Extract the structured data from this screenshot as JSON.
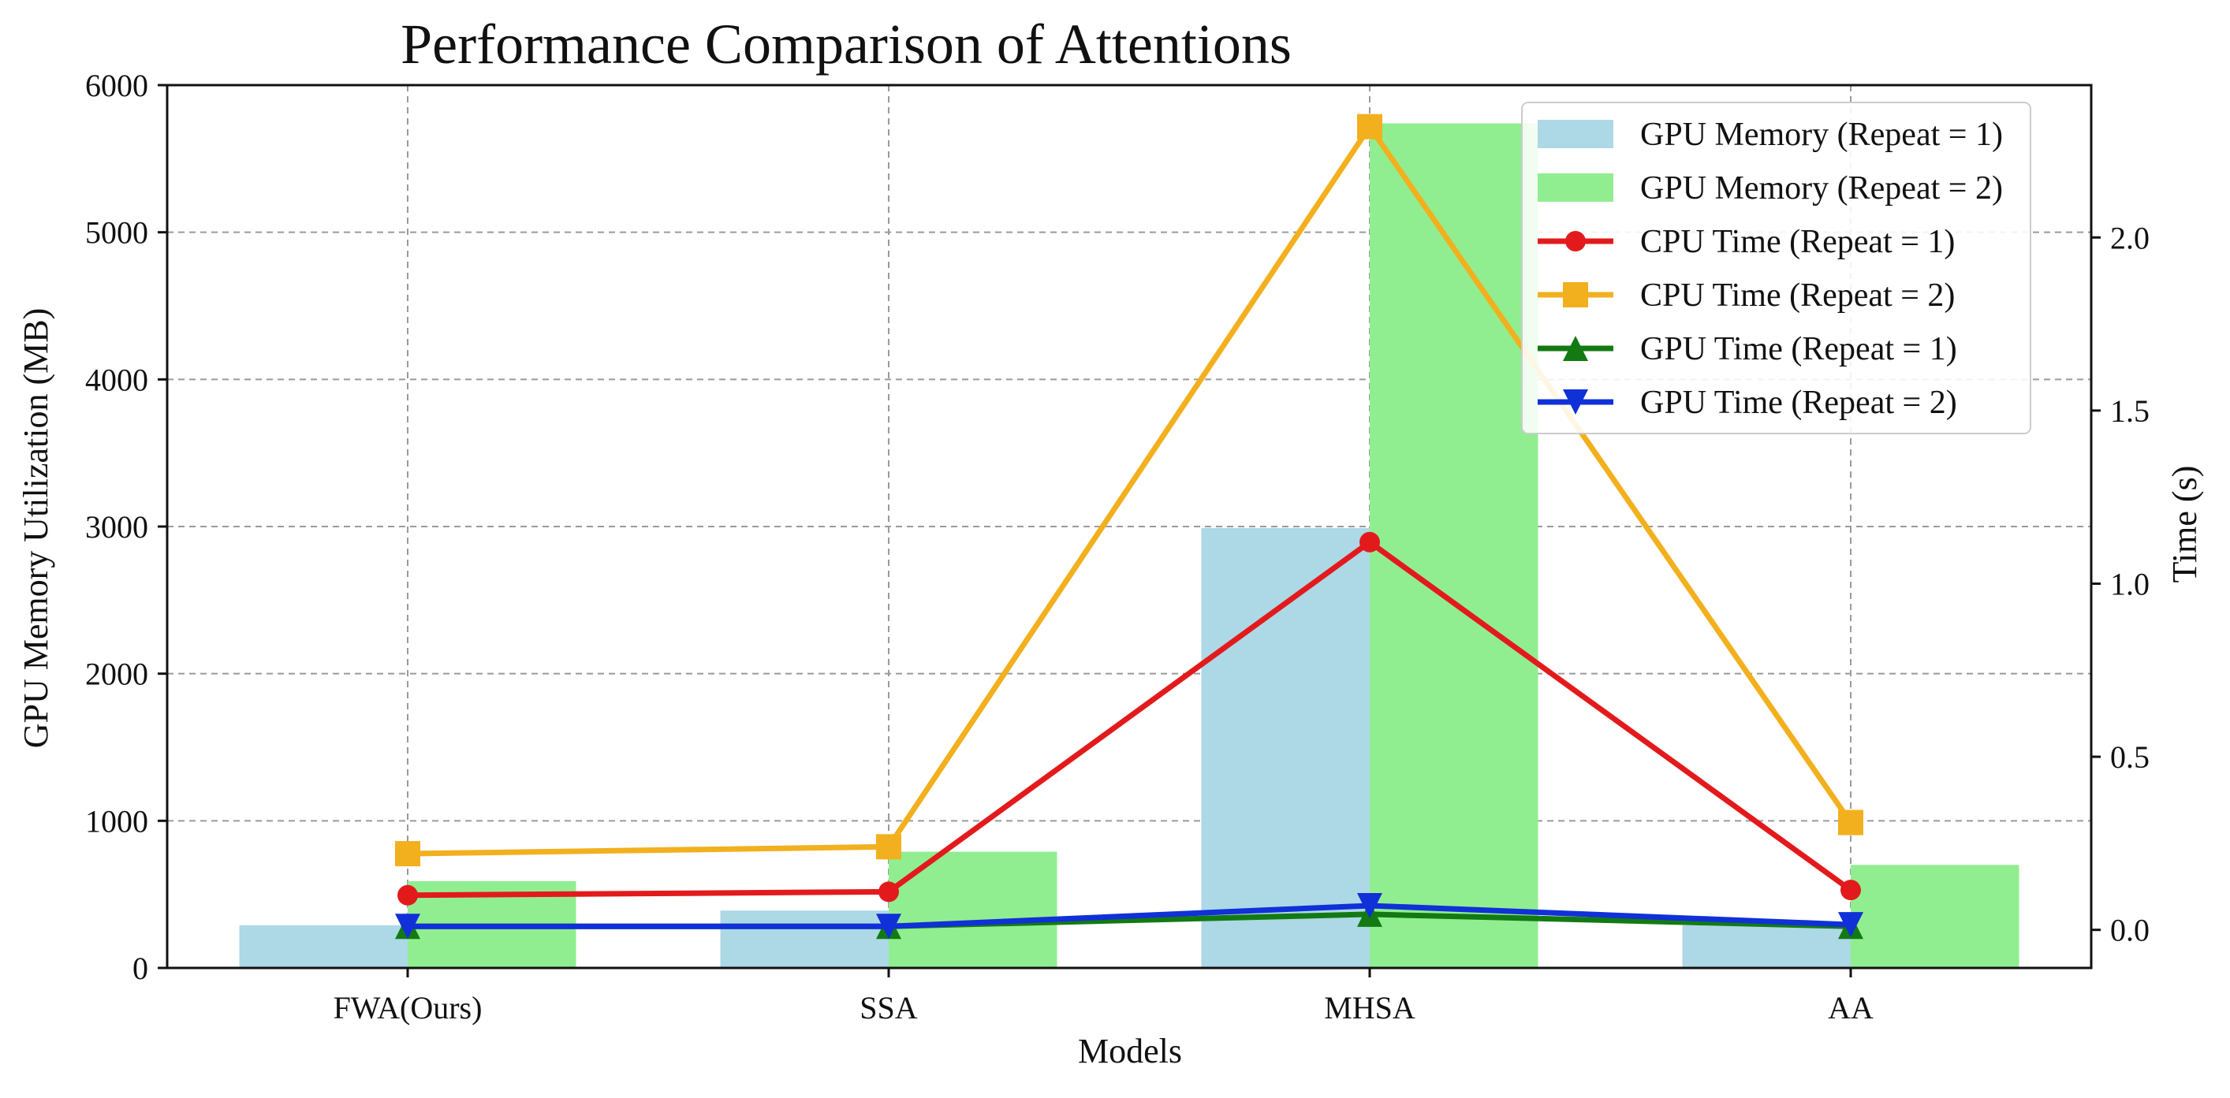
{
  "chart_data": {
    "type": "bar+line",
    "title": "Performance Comparison of Attentions",
    "xlabel": "Models",
    "ylabel_left": "GPU Memory Utilization (MB)",
    "ylabel_right": "Time (s)",
    "categories": [
      "FWA(Ours)",
      "SSA",
      "MHSA",
      "AA"
    ],
    "ylim_left": [
      0,
      6000
    ],
    "yticks_left": [
      "0",
      "1000",
      "2000",
      "3000",
      "4000",
      "5000",
      "6000"
    ],
    "ytick_values_left": [
      0,
      1000,
      2000,
      3000,
      4000,
      5000,
      6000
    ],
    "ylim_right": [
      -0.11,
      2.44
    ],
    "yticks_right": [
      "0.0",
      "0.5",
      "1.0",
      "1.5",
      "2.0"
    ],
    "ytick_values_right": [
      0.0,
      0.5,
      1.0,
      1.5,
      2.0
    ],
    "grid": true,
    "legend_position": "top-right",
    "bar_series": [
      {
        "name": "GPU Memory (Repeat = 1)",
        "color": "#add8e6",
        "values": [
          290,
          390,
          2990,
          290
        ]
      },
      {
        "name": "GPU Memory (Repeat = 2)",
        "color": "#90ee90",
        "values": [
          590,
          790,
          5740,
          700
        ]
      }
    ],
    "line_series": [
      {
        "name": "CPU Time (Repeat = 1)",
        "color": "#e31a1c",
        "marker": "circle",
        "values": [
          0.1,
          0.11,
          1.12,
          0.115
        ]
      },
      {
        "name": "CPU Time (Repeat = 2)",
        "color": "#f2b01e",
        "marker": "square",
        "values": [
          0.22,
          0.24,
          2.32,
          0.31
        ]
      },
      {
        "name": "GPU Time (Repeat = 1)",
        "color": "#137a13",
        "marker": "triangle-up",
        "values": [
          0.01,
          0.01,
          0.045,
          0.01
        ]
      },
      {
        "name": "GPU Time (Repeat = 2)",
        "color": "#1030d8",
        "marker": "triangle-down",
        "values": [
          0.01,
          0.01,
          0.07,
          0.015
        ]
      }
    ],
    "legend_entries": [
      "GPU Memory (Repeat = 1)",
      "GPU Memory (Repeat = 2)",
      "CPU Time (Repeat = 1)",
      "CPU Time (Repeat = 2)",
      "GPU Time (Repeat = 1)",
      "GPU Time (Repeat = 2)"
    ]
  }
}
